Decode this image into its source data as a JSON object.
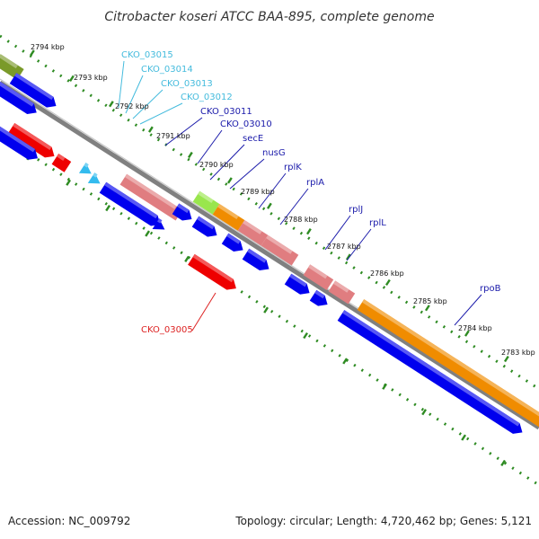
{
  "title": "Citrobacter koseri ATCC BAA-895, complete genome",
  "footer": {
    "accession": "Accession: NC_009792",
    "topology": "Topology: circular; Length: 4,720,462 bp; Genes: 5,121"
  },
  "colors": {
    "cds_blue": "#0000ee",
    "rna_pink": "#e07d80",
    "orange": "#f08c00",
    "red": "#ee0000",
    "lightgreen": "#99e64d",
    "olive": "#7a9a2a",
    "cyan": "#33bbee",
    "backbone": "#808080",
    "tick_green": "#2e8b22",
    "label_cyan": "#44bbdd",
    "label_navy": "#1a1aaa",
    "label_red": "#dd2222"
  },
  "kbp_labels": [
    "2794 kbp",
    "2793 kbp",
    "2792 kbp",
    "2791 kbp",
    "2790 kbp",
    "2789 kbp",
    "2788 kbp",
    "2787 kbp",
    "2786 kbp",
    "2785 kbp",
    "2784 kbp",
    "2783 kbp"
  ],
  "gene_labels": [
    "CKO_03015",
    "CKO_03014",
    "CKO_03013",
    "CKO_03012",
    "CKO_03011",
    "CKO_03010",
    "secE",
    "nusG",
    "rplK",
    "rplA",
    "rplJ",
    "rplL",
    "rpoB",
    "CKO_03005"
  ]
}
